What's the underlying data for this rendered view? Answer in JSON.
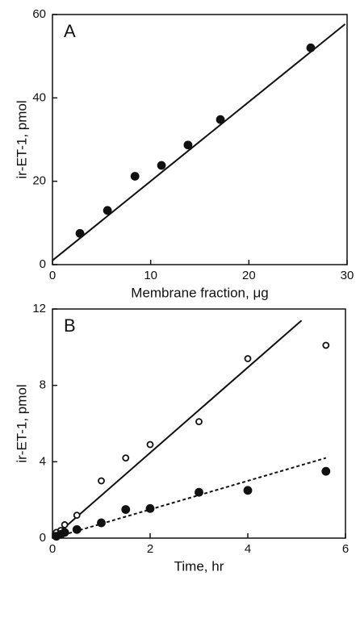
{
  "chart_data": [
    {
      "type": "scatter",
      "panel_label": "A",
      "x_label": "Membrane fraction, μg",
      "y_label": "ir-ET-1, pmol",
      "xlim": [
        0,
        30
      ],
      "ylim": [
        0,
        60
      ],
      "xticks": [
        0,
        10,
        20,
        30
      ],
      "yticks": [
        0,
        20,
        40,
        60
      ],
      "series": [
        {
          "marker": "filled",
          "color": "#111111",
          "x": [
            2.8,
            5.6,
            8.4,
            11.1,
            13.8,
            17.1,
            26.3
          ],
          "values": [
            7.5,
            13,
            21.2,
            23.8,
            28.7,
            34.8,
            52
          ]
        }
      ],
      "fits": [
        {
          "line_style": "solid",
          "x": [
            0,
            29.8
          ],
          "values": [
            1,
            57.7
          ]
        }
      ]
    },
    {
      "type": "scatter",
      "panel_label": "B",
      "x_label": "Time, hr",
      "y_label": "ir-ET-1, pmol",
      "xlim": [
        0,
        6
      ],
      "ylim": [
        0,
        12
      ],
      "xticks": [
        0,
        2,
        4,
        6
      ],
      "yticks": [
        0,
        4,
        8,
        12
      ],
      "series": [
        {
          "marker": "open",
          "color": "#111111",
          "x": [
            0.08,
            0.17,
            0.25,
            0.5,
            1,
            1.5,
            2,
            3,
            4,
            5.6
          ],
          "values": [
            0.3,
            0.4,
            0.7,
            1.2,
            3.0,
            4.2,
            4.9,
            6.1,
            9.4,
            10.1
          ]
        },
        {
          "marker": "filled",
          "color": "#111111",
          "x": [
            0.08,
            0.17,
            0.25,
            0.5,
            1,
            1.5,
            2,
            3,
            4,
            5.6
          ],
          "values": [
            0.1,
            0.2,
            0.3,
            0.45,
            0.8,
            1.5,
            1.55,
            2.4,
            2.5,
            3.5
          ]
        }
      ],
      "fits": [
        {
          "line_style": "solid",
          "x": [
            0,
            5.1
          ],
          "values": [
            0,
            11.4
          ]
        },
        {
          "line_style": "dashed",
          "x": [
            0,
            5.6
          ],
          "values": [
            0,
            4.2
          ]
        }
      ]
    }
  ]
}
